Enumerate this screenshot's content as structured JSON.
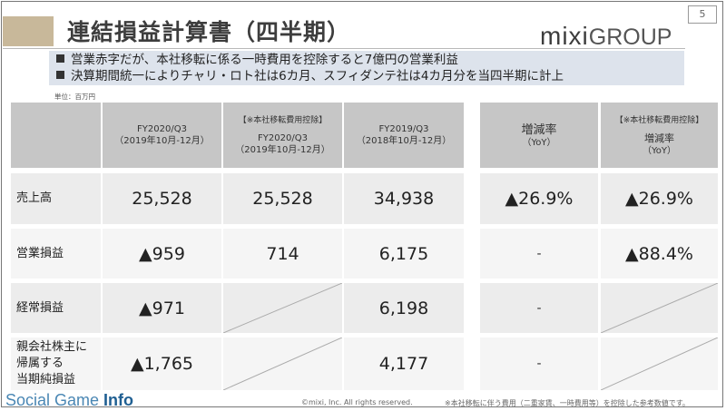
{
  "page_number": "5",
  "title": "連結損益計算書（四半期）",
  "logo": {
    "brand": "mixi",
    "suffix": "GROUP"
  },
  "notes": [
    "営業赤字だが、本社移転に係る一時費用を控除すると7億円の営業利益",
    "決算期間統一によりチャリ・ロト社は6カ月、スフィダンテ社は4カ月分を当四半期に計上"
  ],
  "unit_label": "単位：百万円",
  "table": {
    "headers": {
      "col1": {
        "l1": "FY2020/Q3",
        "l2": "（2019年10月-12月）"
      },
      "col2": {
        "l0": "【※本社移転費用控除】",
        "l1": "FY2020/Q3",
        "l2": "（2019年10月-12月）"
      },
      "col3": {
        "l1": "FY2019/Q3",
        "l2": "（2018年10月-12月）"
      },
      "col4": {
        "l1": "増減率",
        "l2": "（YoY）"
      },
      "col5": {
        "l0": "【※本社移転費用控除】",
        "l1": "増減率",
        "l2": "（YoY）"
      }
    },
    "rows": [
      {
        "label": "売上高",
        "c1": "25,528",
        "c2": "25,528",
        "c3": "34,938",
        "c4": "▲26.9%",
        "c5": "▲26.9%"
      },
      {
        "label": "営業損益",
        "c1": "▲959",
        "c2": "714",
        "c3": "6,175",
        "c4": "-",
        "c5": "▲88.4%"
      },
      {
        "label": "経常損益",
        "c1": "▲971",
        "c3": "6,198",
        "c4": "-"
      },
      {
        "label": "親会社株主に\n帰属する\n当期純損益",
        "c1": "▲1,765",
        "c3": "4,177",
        "c4": "-"
      }
    ]
  },
  "footer": {
    "logo_a": "Social Game ",
    "logo_b": "Info",
    "copyright": "©mixi, Inc. All rights reserved.",
    "footnote": "※本社移転に伴う費用（二重家賃、一時費用等）を控除した参考数値です。"
  }
}
